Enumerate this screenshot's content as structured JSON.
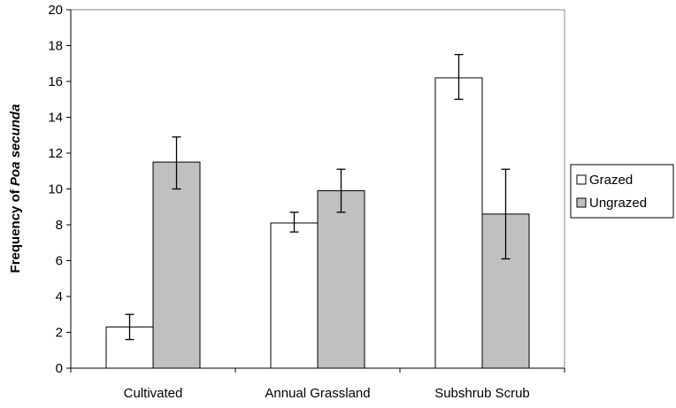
{
  "chart_data": {
    "type": "bar",
    "categories": [
      "Cultivated",
      "Annual Grassland",
      "Subshrub Scrub"
    ],
    "series": [
      {
        "name": "Grazed",
        "color": "#ffffff",
        "values": [
          2.3,
          8.1,
          16.2
        ],
        "error_low": [
          1.6,
          7.6,
          15.0
        ],
        "error_high": [
          3.0,
          8.7,
          17.5
        ]
      },
      {
        "name": "Ungrazed",
        "color": "#c0c0c0",
        "values": [
          11.5,
          9.9,
          8.6
        ],
        "error_low": [
          10.0,
          8.7,
          6.1
        ],
        "error_high": [
          12.9,
          11.1,
          11.1
        ]
      }
    ],
    "ylabel_prefix": "Frequency of ",
    "ylabel_italic": "Poa secunda",
    "xlabel": "",
    "ylim": [
      0,
      20
    ],
    "yticks": [
      "0",
      "2",
      "4",
      "6",
      "8",
      "10",
      "12",
      "14",
      "16",
      "18",
      "20"
    ],
    "grid": false,
    "legend_position": "right"
  }
}
